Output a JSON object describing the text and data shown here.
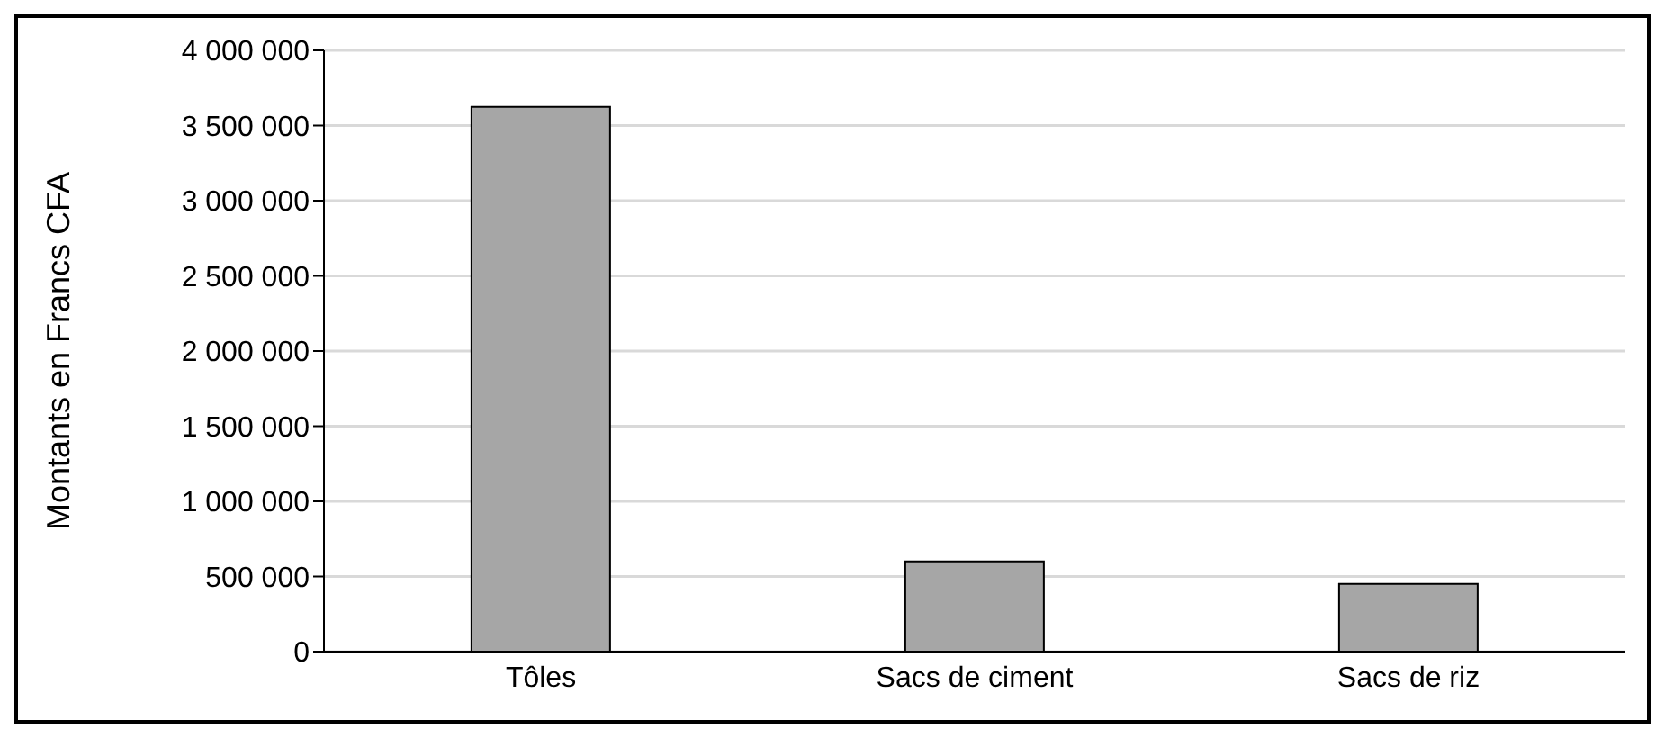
{
  "chart_data": {
    "type": "bar",
    "ylabel": "Montants en Francs CFA",
    "categories": [
      "Tôles",
      "Sacs de ciment",
      "Sacs de riz"
    ],
    "values": [
      3625000,
      600000,
      450000
    ],
    "color": "#a6a6a6",
    "ylim": [
      0,
      4000000
    ],
    "yticks": [
      {
        "value": 0,
        "label": "0"
      },
      {
        "value": 500000,
        "label": "500 000"
      },
      {
        "value": 1000000,
        "label": "1 000 000"
      },
      {
        "value": 1500000,
        "label": "1 500 000"
      },
      {
        "value": 2000000,
        "label": "2 000 000"
      },
      {
        "value": 2500000,
        "label": "2 500 000"
      },
      {
        "value": 3000000,
        "label": "3 000 000"
      },
      {
        "value": 3500000,
        "label": "3 500 000"
      },
      {
        "value": 4000000,
        "label": "4 000 000"
      }
    ],
    "grid": "y",
    "legend": false
  }
}
